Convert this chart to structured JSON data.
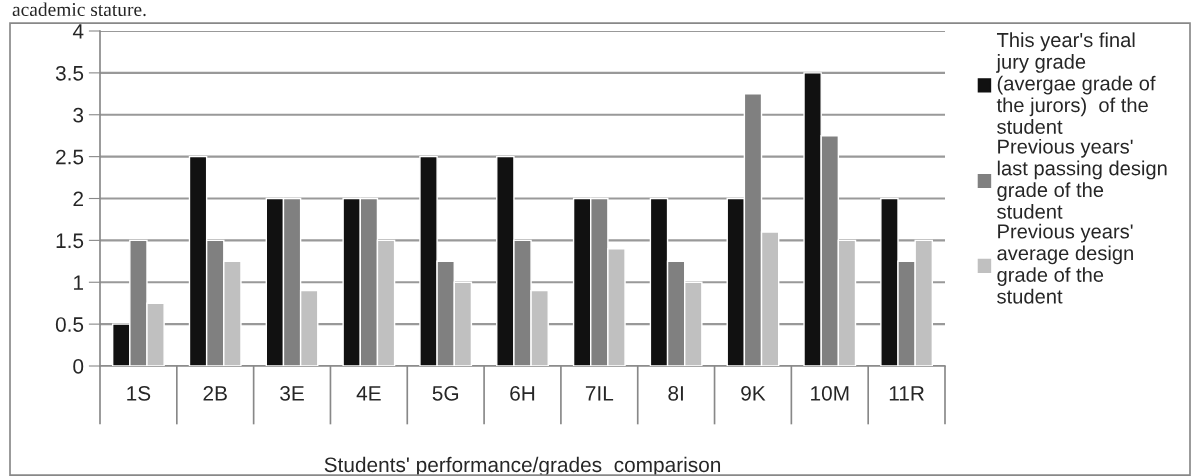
{
  "chart_data": {
    "type": "bar",
    "xlabel": "Students' performance/grades  comparison",
    "annotations": [
      "academic stature."
    ],
    "categories": [
      "1S",
      "2B",
      "3E",
      "4E",
      "5G",
      "6H",
      "7IL",
      "8I",
      "9K",
      "10M",
      "11R"
    ],
    "series": [
      {
        "name": "This year's final\njury grade\n(avergae grade of\nthe jurors)  of the\nstudent",
        "color": "#111111",
        "values": [
          0.5,
          2.5,
          2,
          2,
          2.5,
          2.5,
          2,
          2,
          2,
          3.5,
          2
        ]
      },
      {
        "name": "Previous years'\nlast passing design\ngrade of the\nstudent",
        "color": "#808080",
        "values": [
          1.5,
          1.5,
          2,
          2,
          1.25,
          1.5,
          2,
          1.25,
          3.25,
          2.75,
          1.25
        ]
      },
      {
        "name": "Previous years'\naverage design\ngrade of the\nstudent",
        "color": "#c0c0c0",
        "values": [
          0.75,
          1.25,
          0.9,
          1.5,
          1.0,
          0.9,
          1.4,
          1.0,
          1.6,
          1.5,
          1.5
        ]
      }
    ],
    "ylim": [
      0,
      4
    ],
    "yticks": [
      0,
      0.5,
      1,
      1.5,
      2,
      2.5,
      3,
      3.5,
      4
    ],
    "grid": "y",
    "legend": "right"
  }
}
